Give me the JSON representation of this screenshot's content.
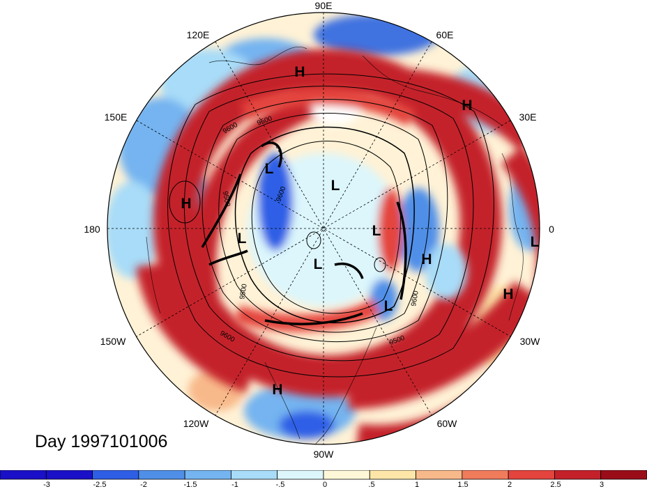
{
  "title": "Day 1997101006",
  "longitude_labels": [
    "90E",
    "60E",
    "30E",
    "0",
    "30W",
    "60W",
    "90W",
    "120W",
    "150W",
    "180",
    "150E",
    "120E"
  ],
  "pressure_centers": [
    "H",
    "H",
    "H",
    "L",
    "H",
    "L",
    "L",
    "L",
    "L",
    "H",
    "L",
    "L",
    "H",
    "H",
    "L"
  ],
  "contour_labels": [
    "9600",
    "9500",
    "9500",
    "9600",
    "9500",
    "9600",
    "9600",
    "9500"
  ],
  "colorbar": {
    "ticks": [
      "-3",
      "-2.5",
      "-2",
      "-1.5",
      "-1",
      "-.5",
      "0",
      ".5",
      "1",
      "1.5",
      "2",
      "2.5",
      "3"
    ],
    "colors": [
      "#1a10c8",
      "#2e5ee6",
      "#4f8fe8",
      "#74b4f0",
      "#a8dcf8",
      "#dcf6fc",
      "#fff8d8",
      "#fde6a8",
      "#f8b98a",
      "#f07c5c",
      "#e4443e",
      "#c4202a",
      "#9a0c18"
    ]
  }
}
